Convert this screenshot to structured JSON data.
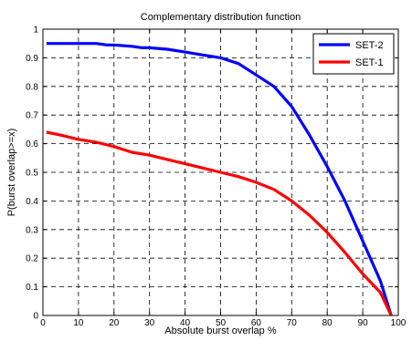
{
  "chart_data": {
    "type": "line",
    "title": "Complementary distribution function",
    "xlabel": "Absolute burst overlap %",
    "ylabel": "P(burst overlap>=x)",
    "xlim": [
      0,
      100
    ],
    "ylim": [
      0,
      1
    ],
    "xticks": [
      0,
      10,
      20,
      30,
      40,
      50,
      60,
      70,
      80,
      90,
      100
    ],
    "yticks": [
      0,
      0.1,
      0.2,
      0.3,
      0.4,
      0.5,
      0.6,
      0.7,
      0.8,
      0.9,
      1
    ],
    "grid": true,
    "legend_position": "top-right",
    "series": [
      {
        "name": "SET-2",
        "color": "#0000ff",
        "x": [
          1,
          5,
          10,
          15,
          18,
          20,
          25,
          28,
          30,
          35,
          40,
          45,
          50,
          55,
          60,
          65,
          70,
          75,
          80,
          85,
          90,
          95,
          98
        ],
        "y": [
          0.95,
          0.95,
          0.95,
          0.95,
          0.945,
          0.945,
          0.94,
          0.935,
          0.935,
          0.93,
          0.92,
          0.91,
          0.9,
          0.88,
          0.84,
          0.8,
          0.73,
          0.63,
          0.52,
          0.4,
          0.26,
          0.12,
          0
        ]
      },
      {
        "name": "SET-1",
        "color": "#ff0000",
        "x": [
          1,
          5,
          10,
          15,
          20,
          25,
          30,
          35,
          40,
          45,
          50,
          55,
          60,
          65,
          70,
          75,
          80,
          85,
          90,
          95,
          98
        ],
        "y": [
          0.64,
          0.63,
          0.615,
          0.605,
          0.59,
          0.57,
          0.56,
          0.545,
          0.53,
          0.515,
          0.5,
          0.485,
          0.465,
          0.44,
          0.4,
          0.35,
          0.29,
          0.22,
          0.145,
          0.08,
          0
        ]
      }
    ]
  }
}
